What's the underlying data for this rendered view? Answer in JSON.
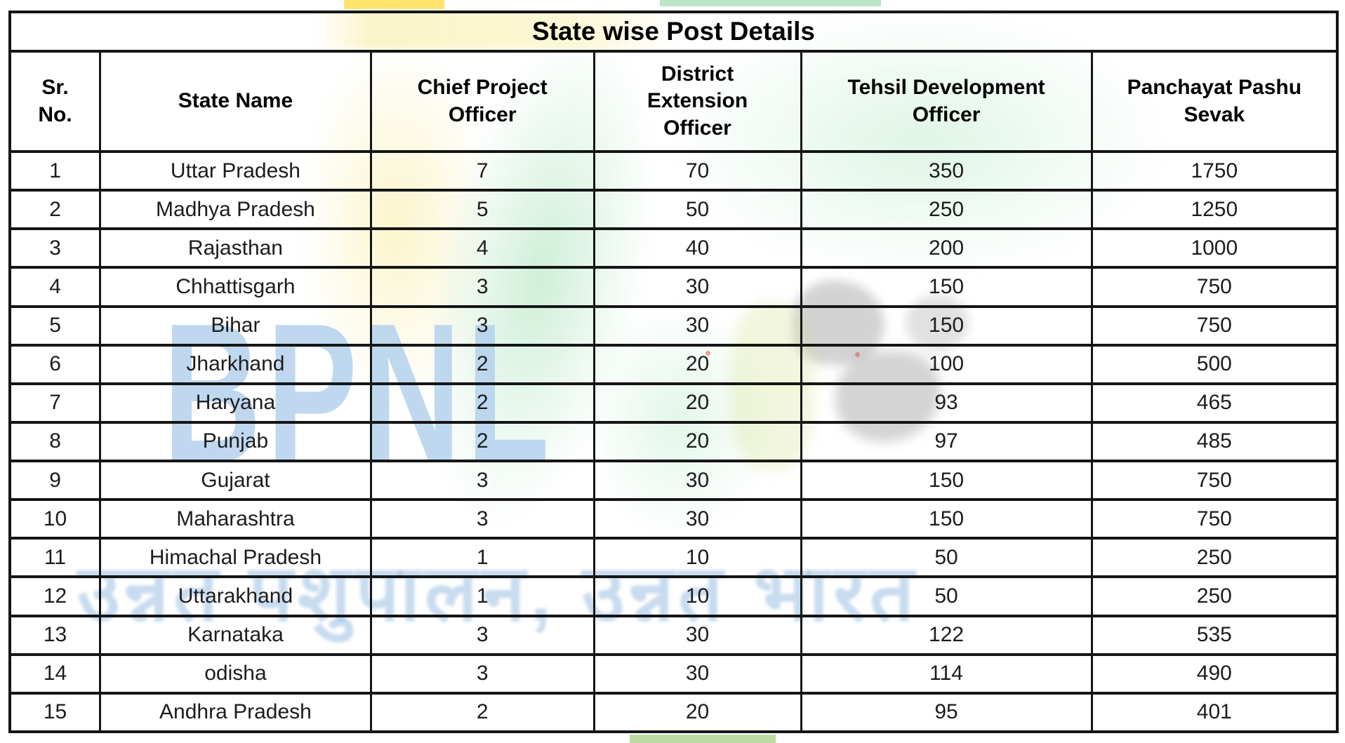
{
  "table": {
    "title": "State wise Post Details",
    "column_keys": [
      "sr_no",
      "state_name",
      "chief_project_officer",
      "district_extension_officer",
      "tehsil_development_officer",
      "panchayat_pashu_sevak"
    ],
    "columns": [
      "Sr.\nNo.",
      "State Name",
      "Chief Project\nOfficer",
      "District\nExtension\nOfficer",
      "Tehsil Development\nOfficer",
      "Panchayat Pashu\nSevak"
    ],
    "rows": [
      {
        "sr_no": "1",
        "state_name": "Uttar Pradesh",
        "chief_project_officer": "7",
        "district_extension_officer": "70",
        "tehsil_development_officer": "350",
        "panchayat_pashu_sevak": "1750"
      },
      {
        "sr_no": "2",
        "state_name": "Madhya Pradesh",
        "chief_project_officer": "5",
        "district_extension_officer": "50",
        "tehsil_development_officer": "250",
        "panchayat_pashu_sevak": "1250"
      },
      {
        "sr_no": "3",
        "state_name": "Rajasthan",
        "chief_project_officer": "4",
        "district_extension_officer": "40",
        "tehsil_development_officer": "200",
        "panchayat_pashu_sevak": "1000"
      },
      {
        "sr_no": "4",
        "state_name": "Chhattisgarh",
        "chief_project_officer": "3",
        "district_extension_officer": "30",
        "tehsil_development_officer": "150",
        "panchayat_pashu_sevak": "750"
      },
      {
        "sr_no": "5",
        "state_name": "Bihar",
        "chief_project_officer": "3",
        "district_extension_officer": "30",
        "tehsil_development_officer": "150",
        "panchayat_pashu_sevak": "750"
      },
      {
        "sr_no": "6",
        "state_name": "Jharkhand",
        "chief_project_officer": "2",
        "district_extension_officer": "20",
        "tehsil_development_officer": "100",
        "panchayat_pashu_sevak": "500"
      },
      {
        "sr_no": "7",
        "state_name": "Haryana",
        "chief_project_officer": "2",
        "district_extension_officer": "20",
        "tehsil_development_officer": "93",
        "panchayat_pashu_sevak": "465"
      },
      {
        "sr_no": "8",
        "state_name": "Punjab",
        "chief_project_officer": "2",
        "district_extension_officer": "20",
        "tehsil_development_officer": "97",
        "panchayat_pashu_sevak": "485"
      },
      {
        "sr_no": "9",
        "state_name": "Gujarat",
        "chief_project_officer": "3",
        "district_extension_officer": "30",
        "tehsil_development_officer": "150",
        "panchayat_pashu_sevak": "750"
      },
      {
        "sr_no": "10",
        "state_name": "Maharashtra",
        "chief_project_officer": "3",
        "district_extension_officer": "30",
        "tehsil_development_officer": "150",
        "panchayat_pashu_sevak": "750"
      },
      {
        "sr_no": "11",
        "state_name": "Himachal Pradesh",
        "chief_project_officer": "1",
        "district_extension_officer": "10",
        "tehsil_development_officer": "50",
        "panchayat_pashu_sevak": "250"
      },
      {
        "sr_no": "12",
        "state_name": "Uttarakhand",
        "chief_project_officer": "1",
        "district_extension_officer": "10",
        "tehsil_development_officer": "50",
        "panchayat_pashu_sevak": "250"
      },
      {
        "sr_no": "13",
        "state_name": "Karnataka",
        "chief_project_officer": "3",
        "district_extension_officer": "30",
        "tehsil_development_officer": "122",
        "panchayat_pashu_sevak": "535"
      },
      {
        "sr_no": "14",
        "state_name": "odisha",
        "chief_project_officer": "3",
        "district_extension_officer": "30",
        "tehsil_development_officer": "114",
        "panchayat_pashu_sevak": "490"
      },
      {
        "sr_no": "15",
        "state_name": "Andhra Pradesh",
        "chief_project_officer": "2",
        "district_extension_officer": "20",
        "tehsil_development_officer": "95",
        "panchayat_pashu_sevak": "401"
      }
    ]
  },
  "watermark": {
    "logo_text": "BPNL",
    "tagline": "उन्नत पशुपालन, उन्नत भारत",
    "colors": {
      "logo_blue": "#b4d2ee",
      "pale_yellow": "#faf3c8",
      "bright_yellow": "#ffe36a",
      "mint_green": "#cdeccd",
      "bottom_green": "#a0cd7d"
    }
  }
}
